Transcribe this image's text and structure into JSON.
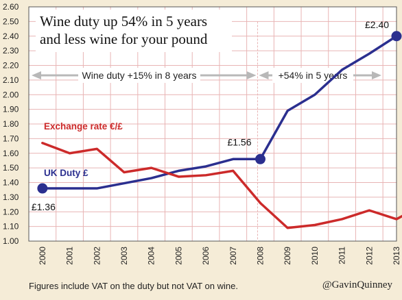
{
  "chart_data": {
    "type": "line",
    "title": "Wine duty up 54% in 5 years",
    "subtitle": "and less wine for your pound",
    "x": [
      "2000",
      "2001",
      "2002",
      "2003",
      "2004",
      "2005",
      "2006",
      "2007",
      "2008",
      "2009",
      "2010",
      "2011",
      "2012",
      "2013"
    ],
    "ylim": [
      1.0,
      2.6
    ],
    "yticks": [
      "1.00",
      "1.10",
      "1.20",
      "1.30",
      "1.40",
      "1.50",
      "1.60",
      "1.70",
      "1.80",
      "1.90",
      "2.00",
      "2.10",
      "2.20",
      "2.30",
      "2.40",
      "2.50",
      "2.60"
    ],
    "grid": true,
    "series": [
      {
        "name": "UK Duty £",
        "color": "#2b2f8f",
        "points": [
          {
            "x": 2000,
            "y": 1.36
          },
          {
            "x": 2002,
            "y": 1.36
          },
          {
            "x": 2004,
            "y": 1.43
          },
          {
            "x": 2005,
            "y": 1.48
          },
          {
            "x": 2006,
            "y": 1.51
          },
          {
            "x": 2007,
            "y": 1.56
          },
          {
            "x": 2008,
            "y": 1.56
          },
          {
            "x": 2009,
            "y": 1.89
          },
          {
            "x": 2010,
            "y": 2.0
          },
          {
            "x": 2011,
            "y": 2.17
          },
          {
            "x": 2012,
            "y": 2.28
          },
          {
            "x": 2013,
            "y": 2.4
          }
        ]
      },
      {
        "name": "Exchange rate €/£",
        "color": "#cc2a2a",
        "points": [
          {
            "x": 2000,
            "y": 1.67
          },
          {
            "x": 2001,
            "y": 1.6
          },
          {
            "x": 2002,
            "y": 1.63
          },
          {
            "x": 2003,
            "y": 1.47
          },
          {
            "x": 2004,
            "y": 1.5
          },
          {
            "x": 2005,
            "y": 1.44
          },
          {
            "x": 2006,
            "y": 1.45
          },
          {
            "x": 2007,
            "y": 1.48
          },
          {
            "x": 2008,
            "y": 1.26
          },
          {
            "x": 2009,
            "y": 1.09
          },
          {
            "x": 2010,
            "y": 1.11
          },
          {
            "x": 2011,
            "y": 1.15
          },
          {
            "x": 2012,
            "y": 1.21
          },
          {
            "x": 2013,
            "y": 1.15
          },
          {
            "x": 2013.5,
            "y": 1.2
          }
        ]
      }
    ],
    "markers": [
      {
        "x": 2000,
        "y": 1.36,
        "label": "£1.36"
      },
      {
        "x": 2008,
        "y": 1.56,
        "label": "£1.56"
      },
      {
        "x": 2013,
        "y": 2.4,
        "label": "£2.40"
      }
    ],
    "annotations": {
      "period1": "Wine duty +15% in 8 years",
      "period2": "+54% in 5 years"
    }
  },
  "footer": {
    "note": "Figures include VAT on the duty but not VAT on wine.",
    "credit": "@GavinQuinney"
  }
}
